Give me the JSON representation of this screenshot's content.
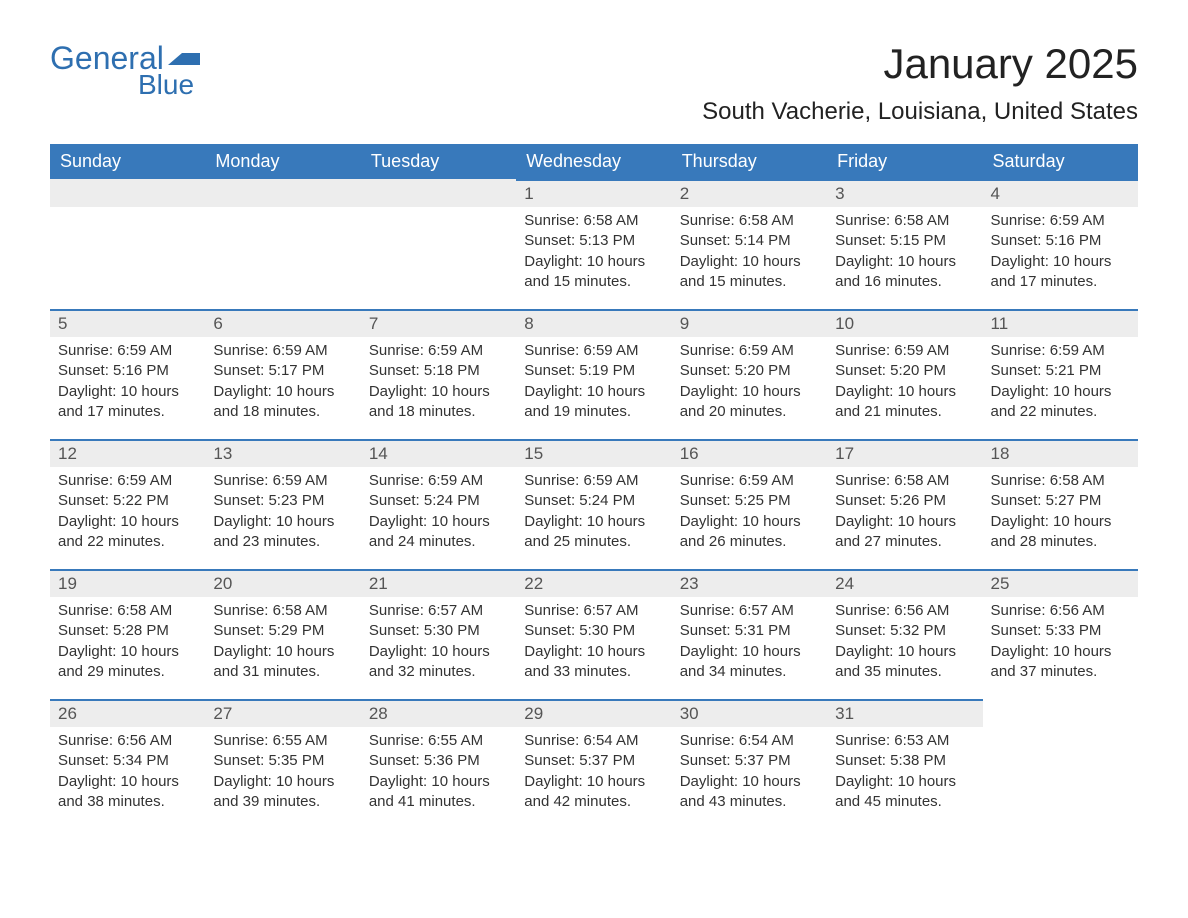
{
  "brand": {
    "general": "General",
    "blue": "Blue",
    "tri_color": "#2e6fb0"
  },
  "title": "January 2025",
  "location": "South Vacherie, Louisiana, United States",
  "header_bg": "#3879bb",
  "header_fg": "#ffffff",
  "daynum_bg": "#ededed",
  "border_color": "#3879bb",
  "weekdays": [
    "Sunday",
    "Monday",
    "Tuesday",
    "Wednesday",
    "Thursday",
    "Friday",
    "Saturday"
  ],
  "weeks": [
    [
      null,
      null,
      null,
      {
        "n": "1",
        "sr": "6:58 AM",
        "ss": "5:13 PM",
        "dl": "10 hours and 15 minutes."
      },
      {
        "n": "2",
        "sr": "6:58 AM",
        "ss": "5:14 PM",
        "dl": "10 hours and 15 minutes."
      },
      {
        "n": "3",
        "sr": "6:58 AM",
        "ss": "5:15 PM",
        "dl": "10 hours and 16 minutes."
      },
      {
        "n": "4",
        "sr": "6:59 AM",
        "ss": "5:16 PM",
        "dl": "10 hours and 17 minutes."
      }
    ],
    [
      {
        "n": "5",
        "sr": "6:59 AM",
        "ss": "5:16 PM",
        "dl": "10 hours and 17 minutes."
      },
      {
        "n": "6",
        "sr": "6:59 AM",
        "ss": "5:17 PM",
        "dl": "10 hours and 18 minutes."
      },
      {
        "n": "7",
        "sr": "6:59 AM",
        "ss": "5:18 PM",
        "dl": "10 hours and 18 minutes."
      },
      {
        "n": "8",
        "sr": "6:59 AM",
        "ss": "5:19 PM",
        "dl": "10 hours and 19 minutes."
      },
      {
        "n": "9",
        "sr": "6:59 AM",
        "ss": "5:20 PM",
        "dl": "10 hours and 20 minutes."
      },
      {
        "n": "10",
        "sr": "6:59 AM",
        "ss": "5:20 PM",
        "dl": "10 hours and 21 minutes."
      },
      {
        "n": "11",
        "sr": "6:59 AM",
        "ss": "5:21 PM",
        "dl": "10 hours and 22 minutes."
      }
    ],
    [
      {
        "n": "12",
        "sr": "6:59 AM",
        "ss": "5:22 PM",
        "dl": "10 hours and 22 minutes."
      },
      {
        "n": "13",
        "sr": "6:59 AM",
        "ss": "5:23 PM",
        "dl": "10 hours and 23 minutes."
      },
      {
        "n": "14",
        "sr": "6:59 AM",
        "ss": "5:24 PM",
        "dl": "10 hours and 24 minutes."
      },
      {
        "n": "15",
        "sr": "6:59 AM",
        "ss": "5:24 PM",
        "dl": "10 hours and 25 minutes."
      },
      {
        "n": "16",
        "sr": "6:59 AM",
        "ss": "5:25 PM",
        "dl": "10 hours and 26 minutes."
      },
      {
        "n": "17",
        "sr": "6:58 AM",
        "ss": "5:26 PM",
        "dl": "10 hours and 27 minutes."
      },
      {
        "n": "18",
        "sr": "6:58 AM",
        "ss": "5:27 PM",
        "dl": "10 hours and 28 minutes."
      }
    ],
    [
      {
        "n": "19",
        "sr": "6:58 AM",
        "ss": "5:28 PM",
        "dl": "10 hours and 29 minutes."
      },
      {
        "n": "20",
        "sr": "6:58 AM",
        "ss": "5:29 PM",
        "dl": "10 hours and 31 minutes."
      },
      {
        "n": "21",
        "sr": "6:57 AM",
        "ss": "5:30 PM",
        "dl": "10 hours and 32 minutes."
      },
      {
        "n": "22",
        "sr": "6:57 AM",
        "ss": "5:30 PM",
        "dl": "10 hours and 33 minutes."
      },
      {
        "n": "23",
        "sr": "6:57 AM",
        "ss": "5:31 PM",
        "dl": "10 hours and 34 minutes."
      },
      {
        "n": "24",
        "sr": "6:56 AM",
        "ss": "5:32 PM",
        "dl": "10 hours and 35 minutes."
      },
      {
        "n": "25",
        "sr": "6:56 AM",
        "ss": "5:33 PM",
        "dl": "10 hours and 37 minutes."
      }
    ],
    [
      {
        "n": "26",
        "sr": "6:56 AM",
        "ss": "5:34 PM",
        "dl": "10 hours and 38 minutes."
      },
      {
        "n": "27",
        "sr": "6:55 AM",
        "ss": "5:35 PM",
        "dl": "10 hours and 39 minutes."
      },
      {
        "n": "28",
        "sr": "6:55 AM",
        "ss": "5:36 PM",
        "dl": "10 hours and 41 minutes."
      },
      {
        "n": "29",
        "sr": "6:54 AM",
        "ss": "5:37 PM",
        "dl": "10 hours and 42 minutes."
      },
      {
        "n": "30",
        "sr": "6:54 AM",
        "ss": "5:37 PM",
        "dl": "10 hours and 43 minutes."
      },
      {
        "n": "31",
        "sr": "6:53 AM",
        "ss": "5:38 PM",
        "dl": "10 hours and 45 minutes."
      },
      null
    ]
  ],
  "labels": {
    "sunrise": "Sunrise:",
    "sunset": "Sunset:",
    "daylight": "Daylight:"
  }
}
